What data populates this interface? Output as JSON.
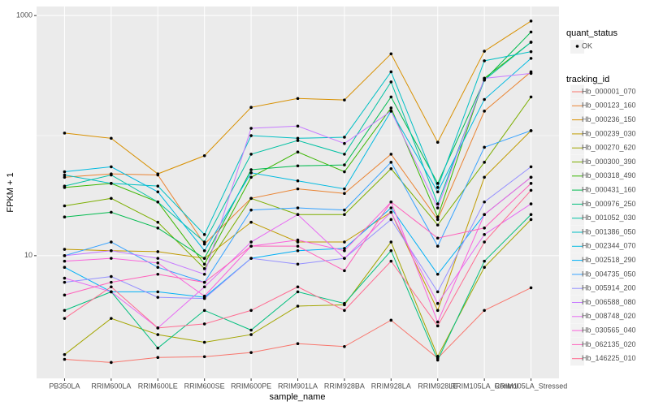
{
  "chart_data": {
    "type": "line",
    "log_y": true,
    "grid": true,
    "x_label": "sample_name",
    "y_label": "FPKM + 1",
    "categories": [
      "PB350LA",
      "RRIM600LA",
      "RRIM600LE",
      "RRIM600SE",
      "RRIM600PE",
      "RRIM901LA",
      "RRIM928BA",
      "RRIM928LA",
      "RRIM928LE",
      "RRIM105LA_Control",
      "RRIM105LA_Stressed"
    ],
    "ylim": [
      0.95,
      1190
    ],
    "yticks": [
      10,
      1000
    ],
    "minor_yticks": [
      100
    ],
    "point_color": "#000000",
    "shape_legend": {
      "title": "quant_status",
      "labels": [
        "OK"
      ]
    },
    "legend_title": "tracking_id",
    "series": [
      {
        "name": "Hb_000001_070",
        "color": "#F8766D",
        "values": [
          1.37,
          1.29,
          1.42,
          1.44,
          1.56,
          1.85,
          1.75,
          2.9,
          1.4,
          3.5,
          5.4
        ]
      },
      {
        "name": "Hb_000123_160",
        "color": "#EA8331",
        "values": [
          45,
          48,
          47,
          12.5,
          30,
          36,
          33,
          70,
          20,
          160,
          340
        ]
      },
      {
        "name": "Hb_000236_150",
        "color": "#D89000",
        "values": [
          105,
          95,
          48,
          68,
          172,
          204,
          198,
          480,
          88,
          505,
          900
        ]
      },
      {
        "name": "Hb_000239_030",
        "color": "#C09B00",
        "values": [
          11.3,
          11,
          10.8,
          9.5,
          19,
          13,
          13,
          23,
          3.5,
          45,
          110
        ]
      },
      {
        "name": "Hb_000270_620",
        "color": "#A3A500",
        "values": [
          1.5,
          3,
          2.2,
          1.9,
          2.2,
          3.8,
          3.9,
          13,
          1.45,
          8,
          20
        ]
      },
      {
        "name": "Hb_000300_390",
        "color": "#7CAE00",
        "values": [
          26,
          30,
          19,
          7.8,
          30,
          22,
          22,
          53,
          18,
          60,
          210
        ]
      },
      {
        "name": "Hb_000318_490",
        "color": "#39B600",
        "values": [
          37,
          40,
          28,
          8.5,
          45,
          73,
          50,
          170,
          21,
          300,
          600
        ]
      },
      {
        "name": "Hb_000431_160",
        "color": "#00BB4E",
        "values": [
          21,
          23,
          17,
          9.5,
          52,
          56,
          57,
          210,
          40,
          290,
          730
        ]
      },
      {
        "name": "Hb_000976_250",
        "color": "#00BF7D",
        "values": [
          3.5,
          5,
          1.7,
          3.5,
          2.4,
          5,
          4,
          11,
          1.35,
          9,
          22
        ]
      },
      {
        "name": "Hb_001052_030",
        "color": "#00C1A3",
        "values": [
          38,
          47,
          28,
          13,
          70,
          91,
          70,
          280,
          27,
          290,
          600
        ]
      },
      {
        "name": "Hb_001386_050",
        "color": "#00BFC4",
        "values": [
          47,
          40,
          38,
          15,
          100,
          95,
          97,
          340,
          37,
          420,
          500
        ]
      },
      {
        "name": "Hb_002344_070",
        "color": "#00BAE0",
        "values": [
          50,
          55,
          34,
          11,
          49,
          42,
          36,
          160,
          34,
          200,
          440
        ]
      },
      {
        "name": "Hb_002518_290",
        "color": "#00B0F6",
        "values": [
          8,
          5,
          5,
          4.5,
          9.5,
          11,
          11.5,
          25,
          7,
          22,
          45
        ]
      },
      {
        "name": "Hb_004735_050",
        "color": "#35A2FF",
        "values": [
          10,
          13,
          8,
          6,
          24,
          25,
          24,
          60,
          12,
          80,
          110
        ]
      },
      {
        "name": "Hb_005914_200",
        "color": "#9590FF",
        "values": [
          6,
          6.7,
          4.5,
          4.4,
          9.5,
          8.5,
          9.5,
          20,
          5,
          28,
          55
        ]
      },
      {
        "name": "Hb_006588_080",
        "color": "#C77CFF",
        "values": [
          10,
          11,
          9.5,
          7,
          115,
          120,
          86,
          160,
          25,
          300,
          330
        ]
      },
      {
        "name": "Hb_008748_020",
        "color": "#E76BF3",
        "values": [
          6.5,
          5,
          2.5,
          5.5,
          13,
          22,
          9.5,
          23,
          4,
          15,
          27
        ]
      },
      {
        "name": "Hb_030565_040",
        "color": "#FA62DB",
        "values": [
          9,
          9.5,
          8.7,
          4.6,
          12,
          13.5,
          11,
          28,
          2.8,
          22,
          45
        ]
      },
      {
        "name": "Hb_062135_020",
        "color": "#FF62BC",
        "values": [
          4.7,
          6,
          7,
          6,
          12,
          12,
          7.5,
          28,
          14,
          17,
          40
        ]
      },
      {
        "name": "Hb_146225_010",
        "color": "#FF6C91",
        "values": [
          3,
          5.5,
          2.5,
          2.7,
          3.5,
          5.5,
          3.5,
          9,
          2.6,
          13,
          35
        ]
      }
    ]
  }
}
